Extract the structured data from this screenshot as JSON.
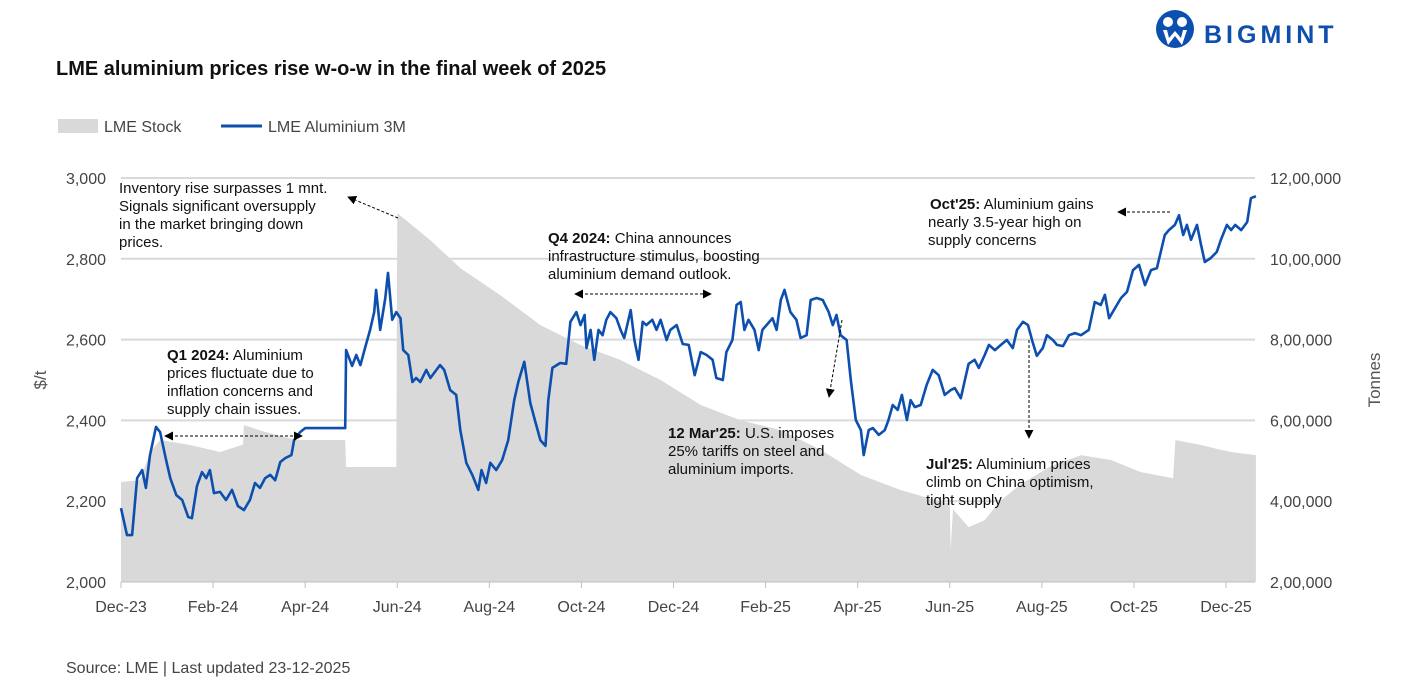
{
  "brand": {
    "name": "BIGMINT",
    "color": "#0d4fae"
  },
  "footer": {
    "source": "Source: LME | Last updated 23-12-2025"
  },
  "chart_data": {
    "type": "line",
    "title": "LME aluminium prices rise w-o-w in the final week of 2025",
    "ylabel": "$/t",
    "y2label": "Tonnes",
    "ylim": [
      2000,
      3000
    ],
    "y2lim": [
      200000,
      1200000
    ],
    "grid": true,
    "legend_position": "top-left",
    "x_unit": "months since Dec-23",
    "xticks": [
      "Dec-23",
      "Feb-24",
      "Apr-24",
      "Jun-24",
      "Aug-24",
      "Oct-24",
      "Dec-24",
      "Feb-25",
      "Apr-25",
      "Jun-25",
      "Aug-25",
      "Oct-25",
      "Dec-25"
    ],
    "yticks": [
      "2,000",
      "2,200",
      "2,400",
      "2,600",
      "2,800",
      "3,000"
    ],
    "y2ticks": [
      "2,00,000",
      "4,00,000",
      "6,00,000",
      "8,00,000",
      "10,00,000",
      "12,00,000"
    ],
    "series": [
      {
        "name": "LME Stock",
        "type": "area",
        "axis": "right",
        "color": "#d9d9d9",
        "points": [
          [
            0,
            447500
          ],
          [
            0.41,
            452000
          ],
          [
            0.63,
            520000
          ],
          [
            0.85,
            551500
          ],
          [
            1.5,
            539000
          ],
          [
            2.15,
            521800
          ],
          [
            2.65,
            540000
          ],
          [
            2.67,
            588600
          ],
          [
            3.13,
            571300
          ],
          [
            3.67,
            556000
          ],
          [
            3.89,
            551500
          ],
          [
            4.87,
            551500
          ],
          [
            4.89,
            484700
          ],
          [
            5.98,
            484700
          ],
          [
            6.0,
            1113000
          ],
          [
            6.72,
            1046000
          ],
          [
            7.37,
            977000
          ],
          [
            8.24,
            910000
          ],
          [
            9.11,
            836000
          ],
          [
            9.98,
            786700
          ],
          [
            10.85,
            749500
          ],
          [
            11.72,
            700000
          ],
          [
            12.59,
            638100
          ],
          [
            13.46,
            600000
          ],
          [
            14.33,
            576000
          ],
          [
            15.2,
            527000
          ],
          [
            16.07,
            464900
          ],
          [
            16.93,
            427700
          ],
          [
            17.91,
            395500
          ],
          [
            18.0,
            395500
          ],
          [
            18.02,
            279000
          ],
          [
            18.07,
            380000
          ],
          [
            18.41,
            336000
          ],
          [
            18.76,
            353000
          ],
          [
            19.09,
            400000
          ],
          [
            19.54,
            442000
          ],
          [
            20.2,
            487000
          ],
          [
            20.85,
            514000
          ],
          [
            21.5,
            502000
          ],
          [
            22.15,
            472000
          ],
          [
            22.85,
            457000
          ],
          [
            22.9,
            551500
          ],
          [
            23.45,
            539000
          ],
          [
            24.1,
            521800
          ],
          [
            24.65,
            514000
          ]
        ]
      },
      {
        "name": "LME Aluminium 3M",
        "type": "line",
        "axis": "left",
        "color": "#0d4fae",
        "points": [
          [
            0,
            2183
          ],
          [
            0.13,
            2116
          ],
          [
            0.24,
            2116
          ],
          [
            0.35,
            2257
          ],
          [
            0.46,
            2277
          ],
          [
            0.54,
            2233
          ],
          [
            0.63,
            2314
          ],
          [
            0.76,
            2384
          ],
          [
            0.85,
            2371
          ],
          [
            0.98,
            2302
          ],
          [
            1.07,
            2257
          ],
          [
            1.2,
            2215
          ],
          [
            1.33,
            2203
          ],
          [
            1.46,
            2161
          ],
          [
            1.54,
            2158
          ],
          [
            1.65,
            2238
          ],
          [
            1.76,
            2272
          ],
          [
            1.85,
            2257
          ],
          [
            1.93,
            2277
          ],
          [
            2.02,
            2220
          ],
          [
            2.15,
            2223
          ],
          [
            2.28,
            2203
          ],
          [
            2.41,
            2228
          ],
          [
            2.54,
            2188
          ],
          [
            2.67,
            2178
          ],
          [
            2.8,
            2203
          ],
          [
            2.91,
            2245
          ],
          [
            3.02,
            2233
          ],
          [
            3.13,
            2257
          ],
          [
            3.24,
            2265
          ],
          [
            3.35,
            2252
          ],
          [
            3.46,
            2297
          ],
          [
            3.57,
            2307
          ],
          [
            3.7,
            2314
          ],
          [
            3.76,
            2351
          ],
          [
            3.89,
            2371
          ],
          [
            4.0,
            2381
          ],
          [
            4.87,
            2381
          ],
          [
            4.89,
            2574
          ],
          [
            5.02,
            2535
          ],
          [
            5.11,
            2562
          ],
          [
            5.2,
            2537
          ],
          [
            5.3,
            2579
          ],
          [
            5.41,
            2624
          ],
          [
            5.5,
            2668
          ],
          [
            5.54,
            2723
          ],
          [
            5.63,
            2624
          ],
          [
            5.74,
            2703
          ],
          [
            5.8,
            2765
          ],
          [
            5.89,
            2649
          ],
          [
            5.98,
            2668
          ],
          [
            6.07,
            2653
          ],
          [
            6.13,
            2574
          ],
          [
            6.24,
            2562
          ],
          [
            6.33,
            2495
          ],
          [
            6.41,
            2505
          ],
          [
            6.5,
            2495
          ],
          [
            6.63,
            2525
          ],
          [
            6.72,
            2505
          ],
          [
            6.85,
            2525
          ],
          [
            6.93,
            2537
          ],
          [
            7.02,
            2525
          ],
          [
            7.15,
            2475
          ],
          [
            7.28,
            2463
          ],
          [
            7.37,
            2376
          ],
          [
            7.5,
            2295
          ],
          [
            7.63,
            2265
          ],
          [
            7.76,
            2228
          ],
          [
            7.83,
            2277
          ],
          [
            7.93,
            2245
          ],
          [
            8.02,
            2295
          ],
          [
            8.15,
            2277
          ],
          [
            8.28,
            2302
          ],
          [
            8.41,
            2351
          ],
          [
            8.54,
            2450
          ],
          [
            8.63,
            2495
          ],
          [
            8.76,
            2545
          ],
          [
            8.89,
            2443
          ],
          [
            9.0,
            2396
          ],
          [
            9.11,
            2351
          ],
          [
            9.22,
            2337
          ],
          [
            9.28,
            2450
          ],
          [
            9.37,
            2530
          ],
          [
            9.54,
            2542
          ],
          [
            9.67,
            2540
          ],
          [
            9.76,
            2644
          ],
          [
            9.89,
            2668
          ],
          [
            9.98,
            2636
          ],
          [
            10.07,
            2661
          ],
          [
            10.11,
            2579
          ],
          [
            10.2,
            2624
          ],
          [
            10.28,
            2550
          ],
          [
            10.37,
            2624
          ],
          [
            10.46,
            2611
          ],
          [
            10.54,
            2649
          ],
          [
            10.63,
            2668
          ],
          [
            10.76,
            2653
          ],
          [
            10.85,
            2624
          ],
          [
            10.93,
            2604
          ],
          [
            11.07,
            2673
          ],
          [
            11.15,
            2599
          ],
          [
            11.24,
            2550
          ],
          [
            11.33,
            2644
          ],
          [
            11.41,
            2636
          ],
          [
            11.54,
            2649
          ],
          [
            11.63,
            2624
          ],
          [
            11.72,
            2649
          ],
          [
            11.85,
            2599
          ],
          [
            11.93,
            2624
          ],
          [
            12.07,
            2636
          ],
          [
            12.2,
            2589
          ],
          [
            12.33,
            2587
          ],
          [
            12.46,
            2512
          ],
          [
            12.59,
            2569
          ],
          [
            12.72,
            2562
          ],
          [
            12.85,
            2550
          ],
          [
            12.93,
            2505
          ],
          [
            13.07,
            2500
          ],
          [
            13.15,
            2569
          ],
          [
            13.28,
            2599
          ],
          [
            13.37,
            2686
          ],
          [
            13.46,
            2693
          ],
          [
            13.54,
            2624
          ],
          [
            13.63,
            2649
          ],
          [
            13.76,
            2624
          ],
          [
            13.85,
            2574
          ],
          [
            13.93,
            2624
          ],
          [
            14.02,
            2636
          ],
          [
            14.15,
            2653
          ],
          [
            14.24,
            2624
          ],
          [
            14.33,
            2698
          ],
          [
            14.41,
            2723
          ],
          [
            14.54,
            2668
          ],
          [
            14.67,
            2649
          ],
          [
            14.76,
            2604
          ],
          [
            14.89,
            2611
          ],
          [
            14.98,
            2698
          ],
          [
            15.11,
            2703
          ],
          [
            15.24,
            2698
          ],
          [
            15.37,
            2668
          ],
          [
            15.46,
            2636
          ],
          [
            15.54,
            2661
          ],
          [
            15.63,
            2611
          ],
          [
            15.76,
            2599
          ],
          [
            15.85,
            2500
          ],
          [
            15.96,
            2401
          ],
          [
            16.07,
            2376
          ],
          [
            16.13,
            2314
          ],
          [
            16.24,
            2376
          ],
          [
            16.33,
            2381
          ],
          [
            16.46,
            2364
          ],
          [
            16.59,
            2376
          ],
          [
            16.67,
            2401
          ],
          [
            16.76,
            2438
          ],
          [
            16.87,
            2426
          ],
          [
            16.96,
            2463
          ],
          [
            17.07,
            2401
          ],
          [
            17.15,
            2450
          ],
          [
            17.24,
            2433
          ],
          [
            17.37,
            2438
          ],
          [
            17.5,
            2488
          ],
          [
            17.63,
            2525
          ],
          [
            17.76,
            2512
          ],
          [
            17.89,
            2463
          ],
          [
            18.02,
            2475
          ],
          [
            18.11,
            2480
          ],
          [
            18.24,
            2455
          ],
          [
            18.33,
            2500
          ],
          [
            18.41,
            2540
          ],
          [
            18.54,
            2550
          ],
          [
            18.63,
            2530
          ],
          [
            18.76,
            2562
          ],
          [
            18.85,
            2587
          ],
          [
            18.98,
            2574
          ],
          [
            19.11,
            2587
          ],
          [
            19.24,
            2599
          ],
          [
            19.37,
            2579
          ],
          [
            19.46,
            2624
          ],
          [
            19.59,
            2644
          ],
          [
            19.7,
            2636
          ],
          [
            19.8,
            2594
          ],
          [
            19.89,
            2560
          ],
          [
            20.02,
            2579
          ],
          [
            20.11,
            2611
          ],
          [
            20.24,
            2599
          ],
          [
            20.33,
            2587
          ],
          [
            20.46,
            2584
          ],
          [
            20.59,
            2611
          ],
          [
            20.72,
            2616
          ],
          [
            20.85,
            2611
          ],
          [
            21.02,
            2624
          ],
          [
            21.15,
            2693
          ],
          [
            21.28,
            2686
          ],
          [
            21.37,
            2711
          ],
          [
            21.46,
            2653
          ],
          [
            21.59,
            2678
          ],
          [
            21.72,
            2703
          ],
          [
            21.85,
            2718
          ],
          [
            21.98,
            2772
          ],
          [
            22.11,
            2785
          ],
          [
            22.24,
            2735
          ],
          [
            22.37,
            2772
          ],
          [
            22.5,
            2777
          ],
          [
            22.67,
            2859
          ],
          [
            22.76,
            2871
          ],
          [
            22.89,
            2884
          ],
          [
            22.98,
            2908
          ],
          [
            23.07,
            2859
          ],
          [
            23.15,
            2884
          ],
          [
            23.24,
            2847
          ],
          [
            23.37,
            2884
          ],
          [
            23.46,
            2834
          ],
          [
            23.54,
            2792
          ],
          [
            23.67,
            2802
          ],
          [
            23.8,
            2817
          ],
          [
            23.89,
            2847
          ],
          [
            24.02,
            2884
          ],
          [
            24.11,
            2871
          ],
          [
            24.2,
            2884
          ],
          [
            24.33,
            2871
          ],
          [
            24.46,
            2891
          ],
          [
            24.54,
            2950
          ],
          [
            24.65,
            2955
          ]
        ]
      }
    ],
    "annotations": [
      {
        "bold": "",
        "lines": [
          "Inventory rise surpasses 1 mnt.",
          "Signals significant oversupply",
          "in the market bringing down",
          "prices."
        ]
      },
      {
        "bold": "Q1 2024:",
        "lines": [
          " Aluminium",
          "prices fluctuate due to",
          "inflation concerns and",
          "supply chain issues."
        ]
      },
      {
        "bold": "Q4 2024:",
        "lines": [
          " China announces",
          "infrastructure stimulus, boosting",
          "aluminium demand outlook."
        ]
      },
      {
        "bold": "12 Mar'25:",
        "lines": [
          " U.S. imposes",
          "25% tariffs on steel and",
          "aluminium imports."
        ]
      },
      {
        "bold": "Jul'25:",
        "lines": [
          " Aluminium prices",
          "climb on China optimism,",
          "tight supply"
        ]
      },
      {
        "bold": "Oct'25:",
        "lines": [
          " Aluminium gains",
          "nearly 3.5-year high on",
          "supply concerns"
        ]
      }
    ]
  }
}
